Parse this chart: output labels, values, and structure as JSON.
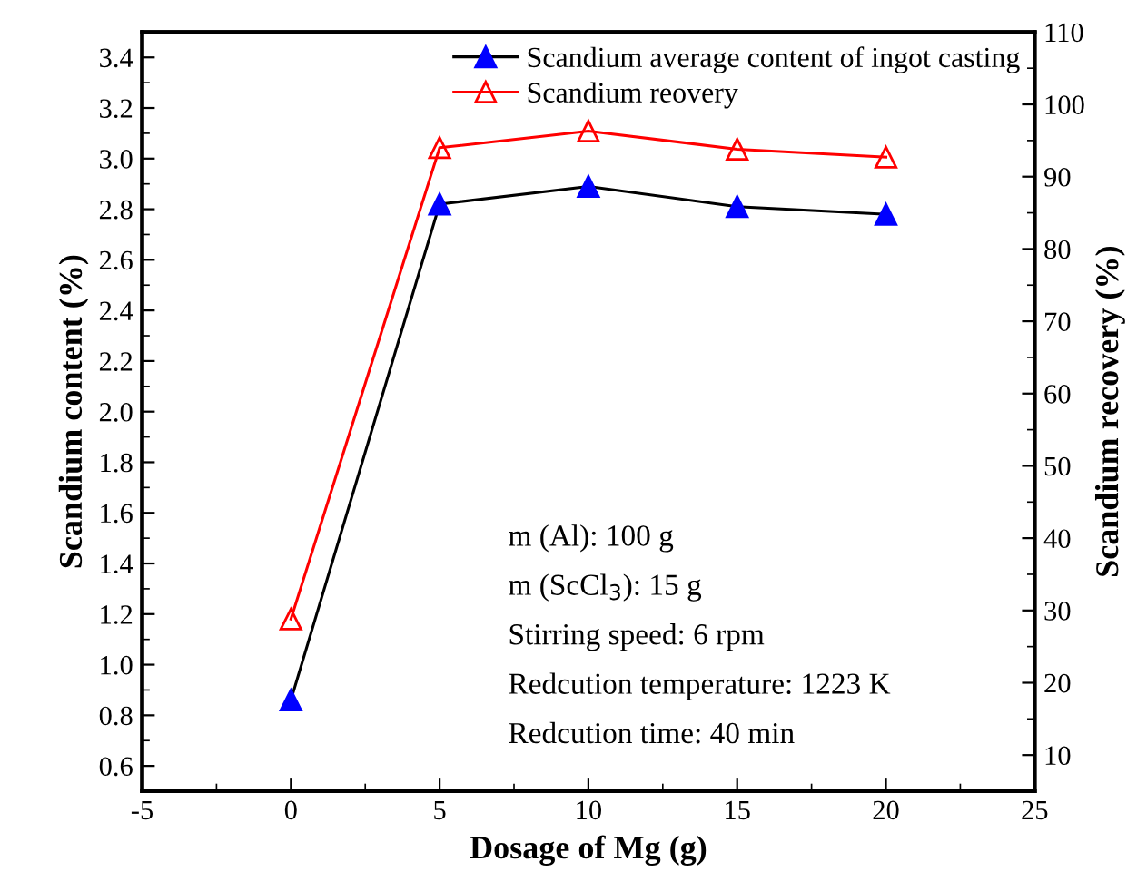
{
  "chart_data": {
    "type": "line",
    "xlabel": "Dosage of Mg (g)",
    "ylabel": "Scandium content (%)",
    "y2label": "Scandium recovery (%)",
    "x": [
      0,
      5,
      10,
      15,
      20
    ],
    "series": [
      {
        "name": "Scandium average content of ingot casting",
        "color": "#0000ff",
        "values": [
          0.86,
          2.82,
          2.89,
          2.81,
          2.78
        ]
      },
      {
        "name": "Scandium reovery",
        "color": "#ff0000",
        "axis": "y2",
        "values": [
          28.8,
          94.0,
          96.3,
          93.8,
          92.7
        ]
      }
    ],
    "xlim": [
      -5,
      25
    ],
    "xticks": [
      -5,
      0,
      5,
      10,
      15,
      20,
      25
    ],
    "ylim": [
      0.5,
      3.5
    ],
    "yticks": [
      0.6,
      0.8,
      {
        "value": 1.0,
        "label": "1.0"
      },
      1.2,
      1.4,
      1.6,
      1.8,
      {
        "value": 2.0,
        "label": "2.0"
      },
      2.2,
      2.4,
      2.6,
      2.8,
      {
        "value": 3.0,
        "label": "3.0"
      },
      3.2,
      3.4
    ],
    "y2lim": [
      5,
      110
    ],
    "y2ticks": [
      10,
      20,
      30,
      40,
      50,
      60,
      70,
      80,
      90,
      100,
      110
    ],
    "annotations": [
      "m (Al): 100 g",
      "m (ScCl$_{3}$): 15 g",
      "Stirring speed: 6 rpm",
      "Redcution temperature: 1223 K",
      "Redcution time: 40 min"
    ],
    "marker": "triangle",
    "legend": "top right",
    "grid": false
  }
}
